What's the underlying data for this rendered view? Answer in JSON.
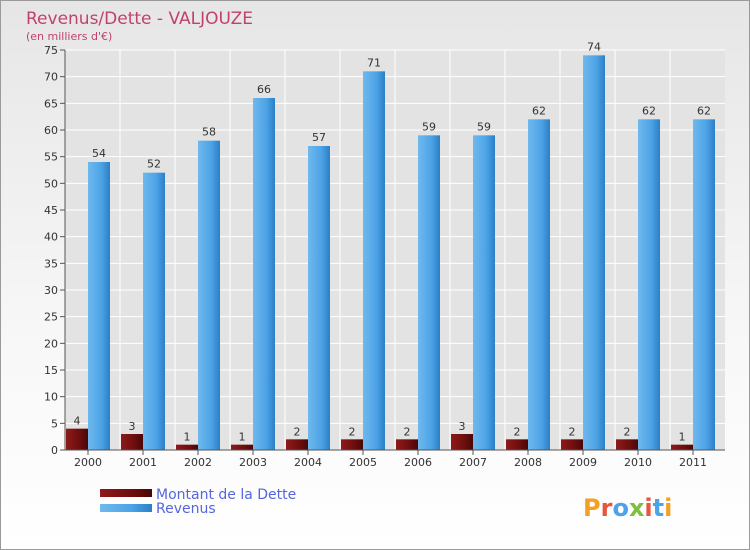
{
  "chart_data": {
    "type": "bar",
    "title": "Revenus/Dette - VALJOUZE",
    "subtitle": "(en milliers d'€)",
    "categories": [
      "2000",
      "2001",
      "2002",
      "2003",
      "2004",
      "2005",
      "2006",
      "2007",
      "2008",
      "2009",
      "2010",
      "2011"
    ],
    "series": [
      {
        "name": "Montant de la Dette",
        "values": [
          4,
          3,
          1,
          1,
          2,
          2,
          2,
          3,
          2,
          2,
          2,
          1
        ],
        "color": "#7b1010"
      },
      {
        "name": "Revenus",
        "values": [
          54,
          52,
          58,
          66,
          57,
          71,
          59,
          59,
          62,
          74,
          62,
          62
        ],
        "color": "#4da3e6"
      }
    ],
    "ylim": [
      0,
      75
    ],
    "yticks": [
      0,
      5,
      10,
      15,
      20,
      25,
      30,
      35,
      40,
      45,
      50,
      55,
      60,
      65,
      70,
      75
    ],
    "grid": true,
    "legend": "bottom-left"
  },
  "colors": {
    "title": "#c2416b",
    "legend_text": "#5566dd",
    "axis": "#555555",
    "grid": "#ffffff"
  },
  "logo": {
    "text": "Proxiti"
  }
}
